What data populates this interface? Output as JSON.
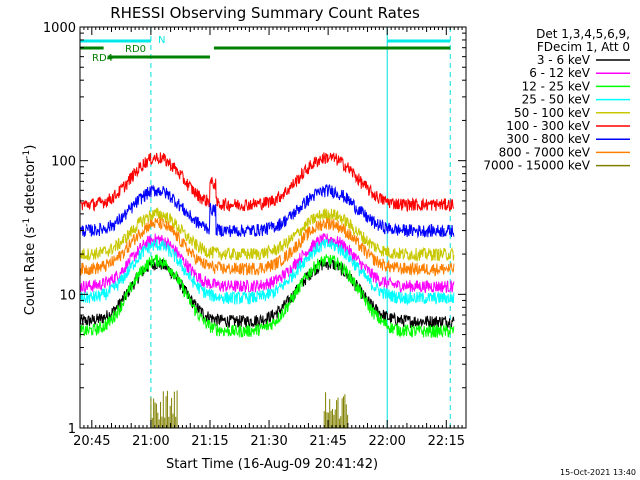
{
  "chart_data": {
    "type": "line",
    "title": "RHESSI Observing Summary Count Rates",
    "xlabel": "Start Time (16-Aug-09 20:41:42)",
    "ylabel_main": "Count Rate (s",
    "ylabel_sup1": "-1",
    "ylabel_mid": " detector",
    "ylabel_sup2": "-1",
    "ylabel_end": ")",
    "y_scale": "log",
    "ylim": [
      1,
      1000
    ],
    "xlim_minutes_after_2040": [
      2,
      100
    ],
    "y_ticks": [
      {
        "value": 1,
        "label": "1"
      },
      {
        "value": 10,
        "label": "10"
      },
      {
        "value": 100,
        "label": "100"
      },
      {
        "value": 1000,
        "label": "1000"
      }
    ],
    "x_ticks": [
      {
        "label": "20:45",
        "t": 5
      },
      {
        "label": "21:00",
        "t": 20
      },
      {
        "label": "21:15",
        "t": 35
      },
      {
        "label": "21:30",
        "t": 50
      },
      {
        "label": "21:45",
        "t": 65
      },
      {
        "label": "22:00",
        "t": 80
      },
      {
        "label": "22:15",
        "t": 95
      }
    ],
    "legend_header": [
      "Det 1,3,4,5,6,9,",
      "FDecim 1, Att 0"
    ],
    "legend_position": "right",
    "series": [
      {
        "name": "3 - 6 keV",
        "color": "#000000",
        "base": 6.3,
        "amp": 2.7
      },
      {
        "name": "6 - 12 keV",
        "color": "#ff00ff",
        "base": 11.5,
        "amp": 2.25
      },
      {
        "name": "12 - 25 keV",
        "color": "#00ff00",
        "base": 5.3,
        "amp": 3.4
      },
      {
        "name": "25 - 50 keV",
        "color": "#00ffff",
        "base": 9.4,
        "amp": 2.5
      },
      {
        "name": "50 - 100 keV",
        "color": "#c8c800",
        "base": 20,
        "amp": 2.0
      },
      {
        "name": "100 - 300 keV",
        "color": "#ff0000",
        "base": 47,
        "amp": 2.25
      },
      {
        "name": "300 - 800 keV",
        "color": "#0000ff",
        "base": 30,
        "amp": 2.0
      },
      {
        "name": "800 - 7000 keV",
        "color": "#ff8000",
        "base": 15.5,
        "amp": 2.2
      },
      {
        "name": "7000 - 15000 keV",
        "color": "#808000",
        "base": 0,
        "amp": 0
      }
    ],
    "annotations": {
      "N": "N",
      "RD0": "RD0",
      "RD4": "RD4"
    },
    "night_intervals_minutes": [
      [
        2,
        20
      ],
      [
        80,
        96
      ]
    ],
    "saa_interval_minutes": [
      [
        2,
        20
      ],
      [
        80,
        96
      ]
    ],
    "rd0_interval_minutes": [
      [
        2,
        8
      ],
      [
        36,
        96
      ]
    ],
    "rd4_interval_minutes": [
      [
        9,
        35
      ]
    ],
    "timestamp": "15-Oct-2021 13:40"
  }
}
